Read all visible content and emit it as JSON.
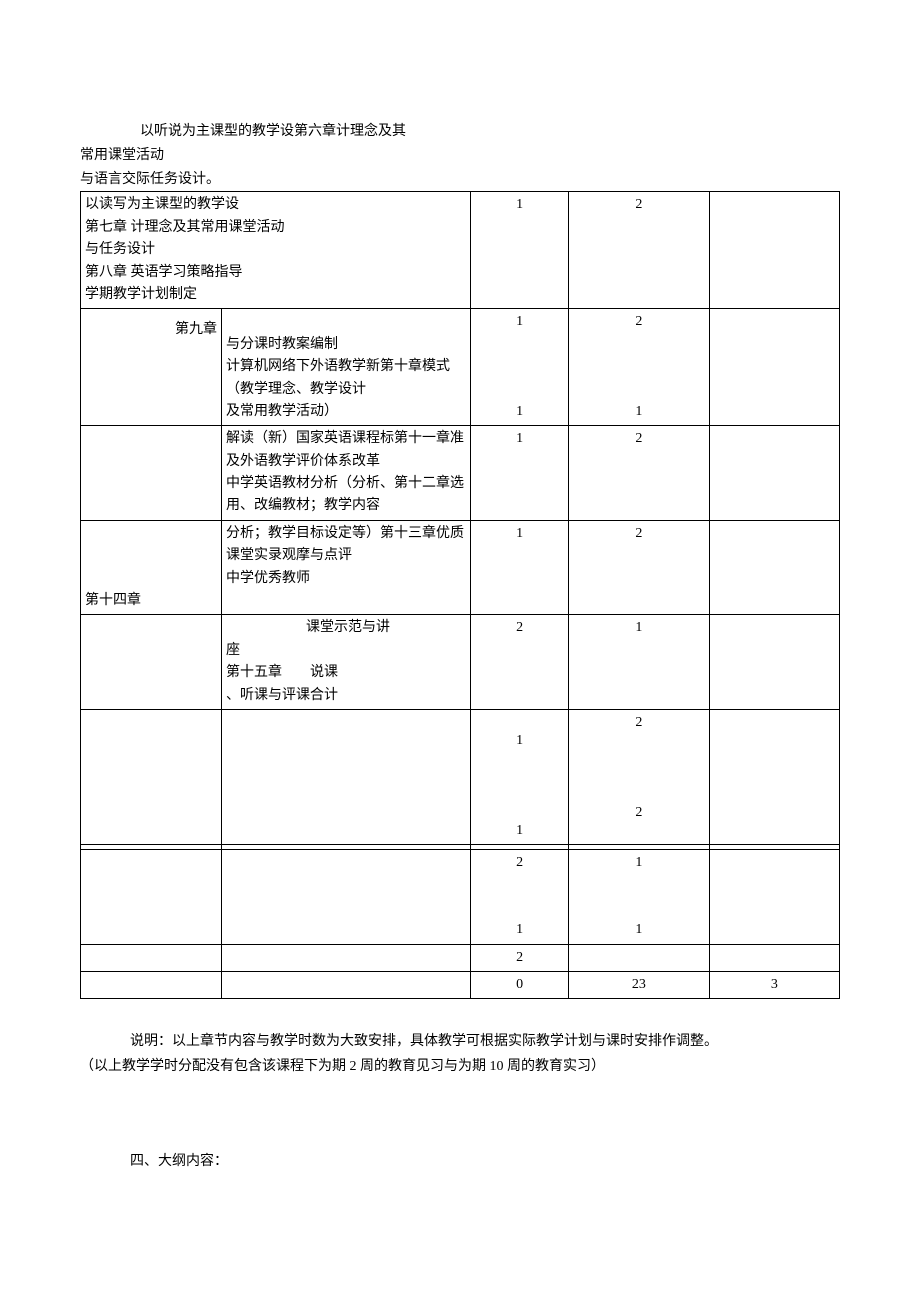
{
  "pretext": {
    "line1": "以听说为主课型的教学设第六章计理念及其",
    "line2": "常用课堂活动",
    "line3": "与语言交际任务设计。"
  },
  "rows": [
    {
      "col1": "以读写为主课型的教学设\n第七章  计理念及其常用课堂活动\n与任务设计\n第八章  英语学习策略指导\n学期教学计划制定",
      "col1_span": 2,
      "col3": "1",
      "col4": "2",
      "col5": ""
    },
    {
      "col1": "第九章",
      "col1_align": "right",
      "col2": "\n与分课时教案编制\n计算机网络下外语教学新第十章模式（教学理念、教学设计\n及常用教学活动）",
      "col3": "1\n\n\n\n1",
      "col4": "2\n\n\n\n1",
      "col5": ""
    },
    {
      "col1": "",
      "col2": "解读（新）国家英语课程标第十一章准及外语教学评价体系改革\n中学英语教材分析（分析、第十二章选用、改编教材；教学内容",
      "col3": "1",
      "col4": "2",
      "col5": ""
    },
    {
      "col1": "\n\n\n第十四章",
      "col2": "分析；教学目标设定等）第十三章优质课堂实录观摩与点评\n中学优秀教师",
      "col3": "1",
      "col4": "2",
      "col5": ""
    },
    {
      "col1": "",
      "col2": "课堂示范与讲\n座\n第十五章　　说课\n、听课与评课合计",
      "col2_indent": true,
      "col3": "2",
      "col4": "1",
      "col5": ""
    },
    {
      "col1": "",
      "col2": "",
      "col3": "1\n\n\n\n1",
      "col4": "2\n\n\n\n2",
      "col5": "",
      "tall": true
    },
    {
      "col1": "",
      "col2": "",
      "col3": "",
      "col4": "",
      "col5": ""
    },
    {
      "col1": "",
      "col2": "",
      "col3": "2\n\n\n1",
      "col4": "1\n\n\n1",
      "col5": "",
      "tall2": true
    },
    {
      "col1": "",
      "col2": "",
      "col3": "2",
      "col4": "",
      "col5": ""
    },
    {
      "col1": "",
      "col2": "",
      "col3": "0",
      "col4": "23",
      "col5": "3",
      "col4_align": "center-shift",
      "col5_align": "center-shift"
    }
  ],
  "note": {
    "line1": "说明：以上章节内容与教学时数为大致安排，具体教学可根据实际教学计划与课时安排作调整。",
    "line2": "（以上教学学时分配没有包含该课程下为期 2 周的教育见习与为期 10 周的教育实习）"
  },
  "section_title": "四、大纲内容：",
  "style": {
    "font_size": 14,
    "border_color": "#000000",
    "background": "#ffffff",
    "text_color": "#000000"
  }
}
